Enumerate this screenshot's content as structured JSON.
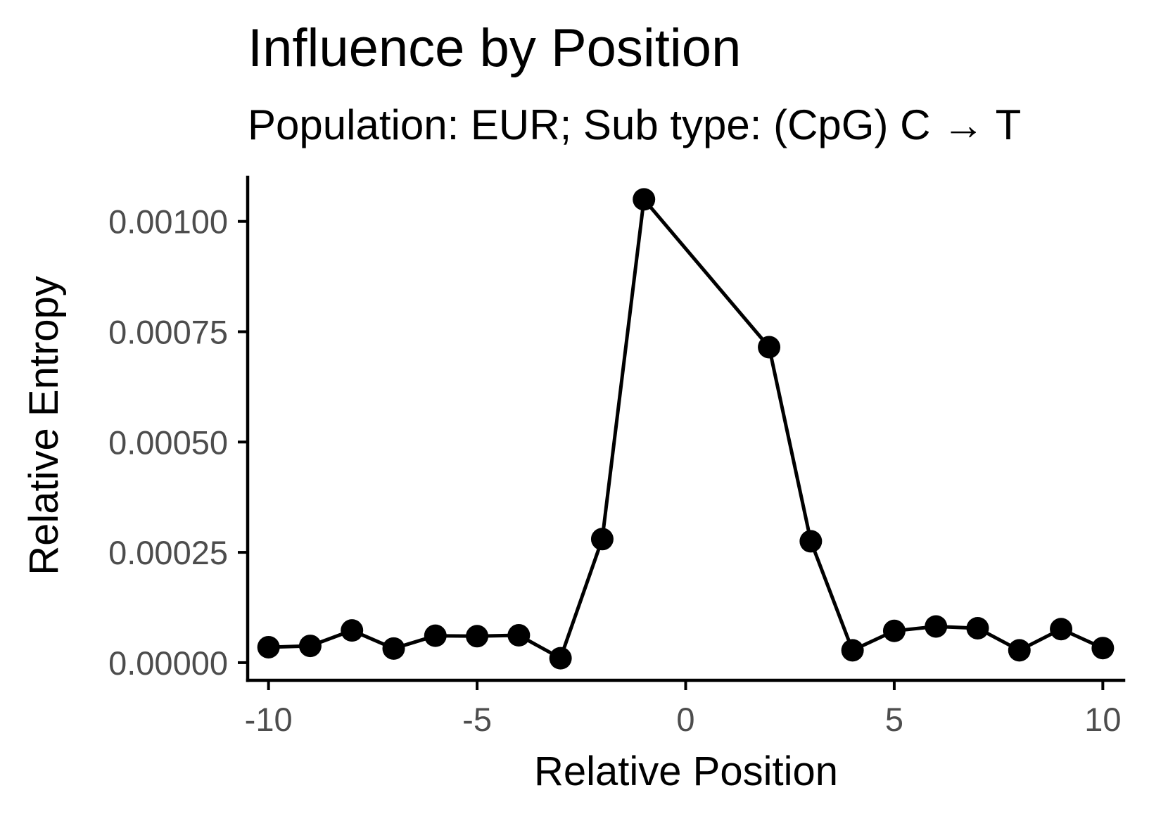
{
  "chart_data": {
    "type": "line",
    "title": "Influence by Position",
    "subtitle": "Population: EUR; Sub type: (CpG) C → T",
    "xlabel": "Relative Position",
    "ylabel": "Relative Entropy",
    "xlim": [
      -10.5,
      10.5
    ],
    "ylim": [
      -4e-05,
      0.0011
    ],
    "x_ticks": [
      -10,
      -5,
      0,
      5,
      10
    ],
    "x_tick_labels": [
      "-10",
      "-5",
      "0",
      "5",
      "10"
    ],
    "y_ticks": [
      0,
      0.00025,
      0.0005,
      0.00075,
      0.001
    ],
    "y_tick_labels": [
      "0.00000",
      "0.00025",
      "0.00050",
      "0.00075",
      "0.00100"
    ],
    "grid": false,
    "legend": "none",
    "colors": {
      "line": "#000000",
      "point": "#000000",
      "axis": "#000000",
      "tick_label": "#4d4d4d"
    },
    "series": [
      {
        "x": [
          -10,
          -9,
          -8,
          -7,
          -6,
          -5,
          -4,
          -3,
          -2,
          -1,
          2,
          3,
          4,
          5,
          6,
          7,
          8,
          9,
          10
        ],
        "y": [
          3.5e-05,
          3.8e-05,
          7.3e-05,
          3.2e-05,
          6.1e-05,
          6e-05,
          6.2e-05,
          1e-05,
          0.00028,
          0.00105,
          0.000715,
          0.000275,
          2.8e-05,
          7.2e-05,
          8.2e-05,
          7.8e-05,
          2.8e-05,
          7.6e-05,
          3.3e-05
        ]
      }
    ]
  }
}
